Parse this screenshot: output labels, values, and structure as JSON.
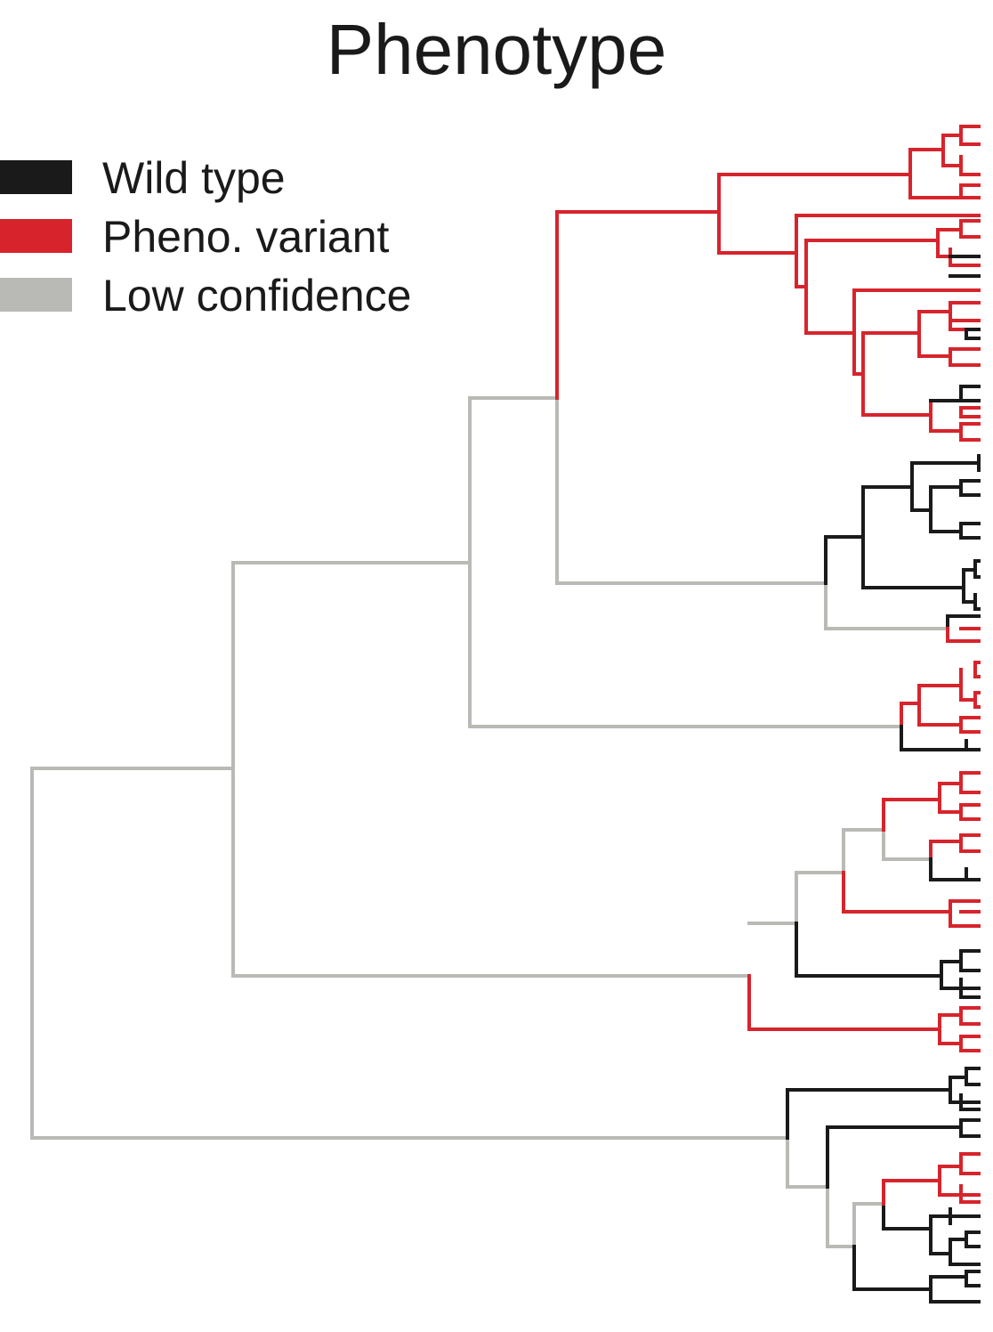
{
  "title": "Phenotype",
  "legend": [
    {
      "label": "Wild type",
      "color": "#1a1a1a"
    },
    {
      "label": "Pheno. variant",
      "color": "#d7242c"
    },
    {
      "label": "Low confidence",
      "color": "#b9bab5"
    }
  ]
}
